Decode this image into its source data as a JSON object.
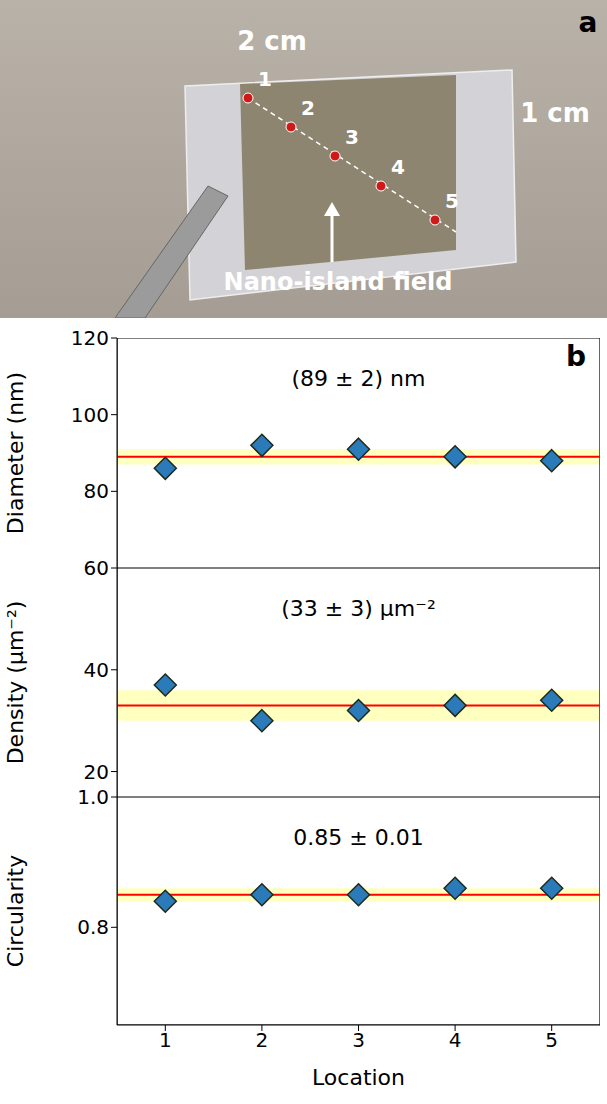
{
  "photo": {
    "panel_label": "a",
    "width_label": "2 cm",
    "height_label": "1 cm",
    "field_label": "Nano-island field",
    "points": [
      "1",
      "2",
      "3",
      "4",
      "5"
    ]
  },
  "chart_panel_label": "b",
  "chart_data": [
    {
      "type": "scatter",
      "y_label": "Diameter (nm)",
      "annotation": "(89 ± 2) nm",
      "x": [
        1,
        2,
        3,
        4,
        5
      ],
      "values": [
        86,
        92,
        91,
        89,
        88
      ],
      "mean": 89,
      "mean_error": 2,
      "color": "#2b7bba",
      "marker": "diamond",
      "xlim": [
        0.5,
        5.5
      ],
      "xticks": [
        1,
        2,
        3,
        4,
        5
      ],
      "ylim": [
        60,
        120
      ],
      "yticks": [
        80,
        100,
        120
      ],
      "tick_labels": "y"
    },
    {
      "type": "scatter",
      "y_label": "Density (μm⁻²)",
      "annotation": "(33 ± 3) μm⁻²",
      "x": [
        1,
        2,
        3,
        4,
        5
      ],
      "values": [
        37,
        30,
        32,
        33,
        34
      ],
      "mean": 33,
      "mean_error": 3,
      "color": "#2b7bba",
      "marker": "diamond",
      "xlim": [
        0.5,
        5.5
      ],
      "xticks": [
        1,
        2,
        3,
        4,
        5
      ],
      "ylim": [
        15,
        60
      ],
      "yticks": [
        20,
        40,
        60
      ],
      "tick_labels": "y"
    },
    {
      "type": "scatter",
      "y_label": "Circularity",
      "x_label": "Location",
      "annotation": "0.85 ± 0.01",
      "x": [
        1,
        2,
        3,
        4,
        5
      ],
      "values": [
        0.84,
        0.85,
        0.85,
        0.86,
        0.86
      ],
      "mean": 0.85,
      "mean_error": 0.01,
      "color": "#2b7bba",
      "marker": "diamond",
      "xlim": [
        0.5,
        5.5
      ],
      "xticks": [
        1,
        2,
        3,
        4,
        5
      ],
      "ylim": [
        0.65,
        1.0
      ],
      "yticks": [
        0.8,
        {
          "value": 1.0,
          "label": "1.0"
        }
      ],
      "tick_labels": true
    }
  ]
}
